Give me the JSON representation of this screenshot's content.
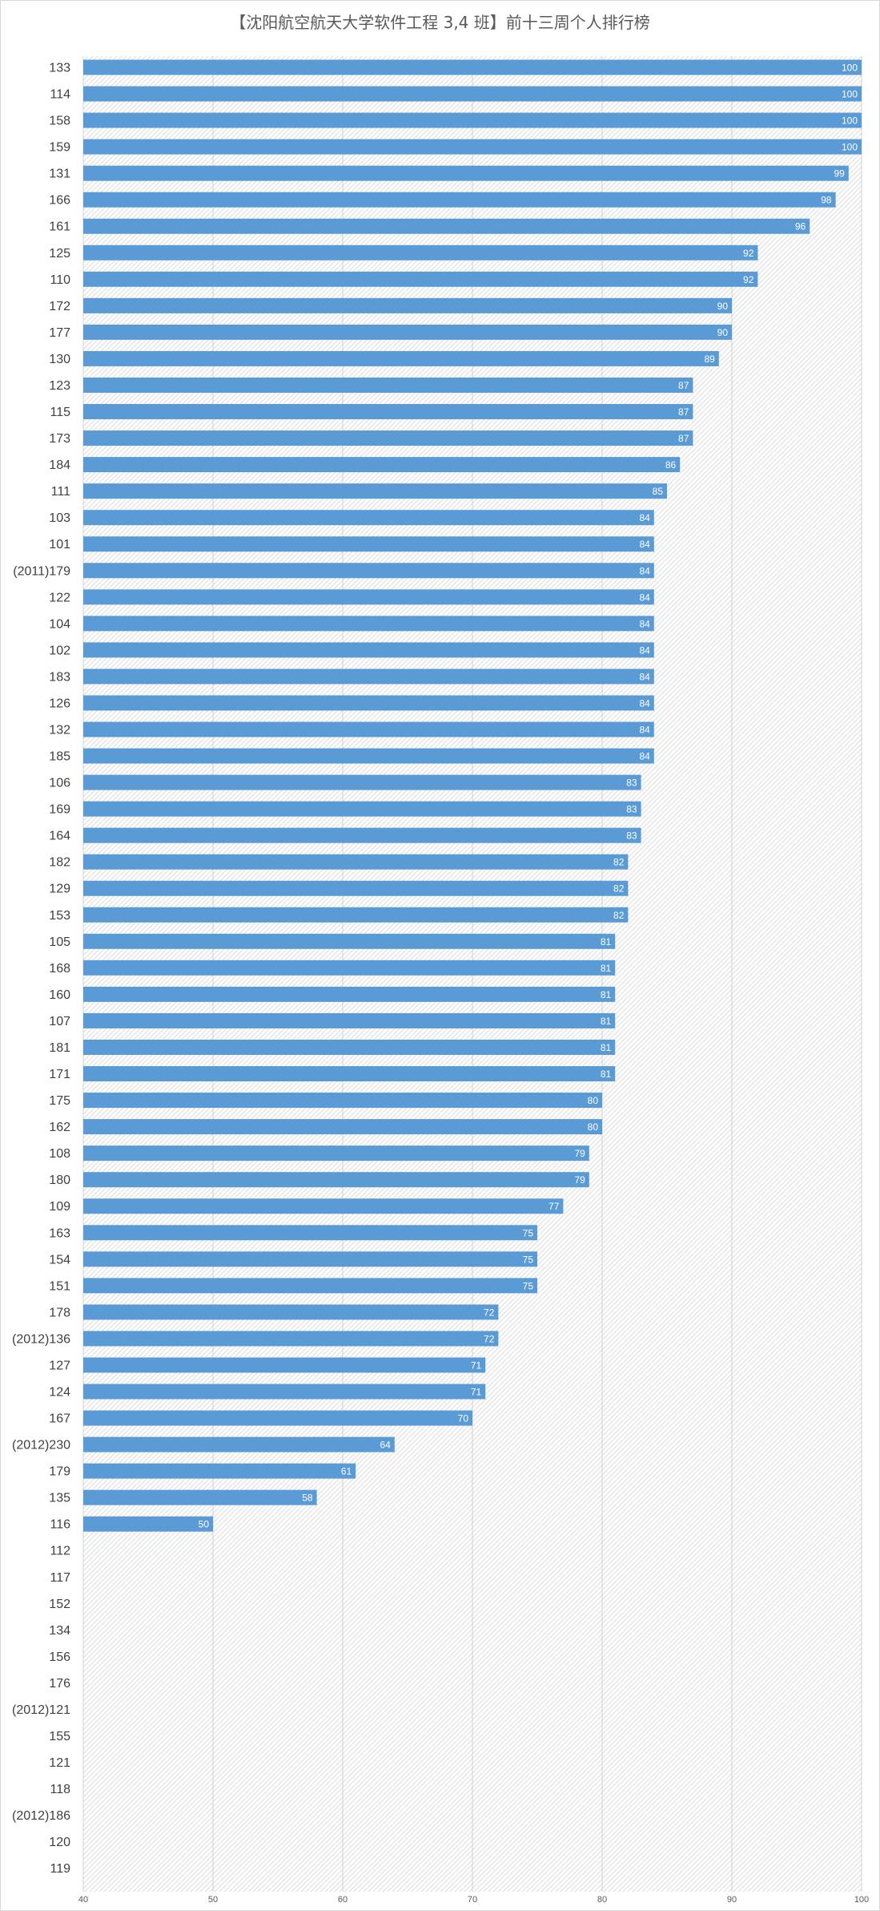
{
  "chart_data": {
    "type": "bar",
    "orientation": "horizontal",
    "title": "【沈阳航空航天大学软件工程 3,4 班】前十三周个人排行榜",
    "xlabel": "",
    "ylabel": "",
    "xlim": [
      40,
      100
    ],
    "xticks": [
      40,
      50,
      60,
      70,
      80,
      90,
      100
    ],
    "grid": true,
    "bar_color": "#5b9bd5",
    "categories": [
      "133",
      "114",
      "158",
      "159",
      "131",
      "166",
      "161",
      "125",
      "110",
      "172",
      "177",
      "130",
      "123",
      "115",
      "173",
      "184",
      "111",
      "103",
      "101",
      "(2011)179",
      "122",
      "104",
      "102",
      "183",
      "126",
      "132",
      "185",
      "106",
      "169",
      "164",
      "182",
      "129",
      "153",
      "105",
      "168",
      "160",
      "107",
      "181",
      "171",
      "175",
      "162",
      "108",
      "180",
      "109",
      "163",
      "154",
      "151",
      "178",
      "(2012)136",
      "127",
      "124",
      "167",
      "(2012)230",
      "179",
      "135",
      "116",
      "112",
      "117",
      "152",
      "134",
      "156",
      "176",
      "(2012)121",
      "155",
      "121",
      "118",
      "(2012)186",
      "120",
      "119"
    ],
    "values": [
      100,
      100,
      100,
      100,
      99,
      98,
      96,
      92,
      92,
      90,
      90,
      89,
      87,
      87,
      87,
      86,
      85,
      84,
      84,
      84,
      84,
      84,
      84,
      84,
      84,
      84,
      84,
      83,
      83,
      83,
      82,
      82,
      82,
      81,
      81,
      81,
      81,
      81,
      81,
      80,
      80,
      79,
      79,
      77,
      75,
      75,
      75,
      72,
      72,
      71,
      71,
      70,
      64,
      61,
      58,
      50,
      null,
      null,
      null,
      null,
      null,
      null,
      null,
      null,
      null,
      null,
      null,
      null,
      null
    ]
  }
}
